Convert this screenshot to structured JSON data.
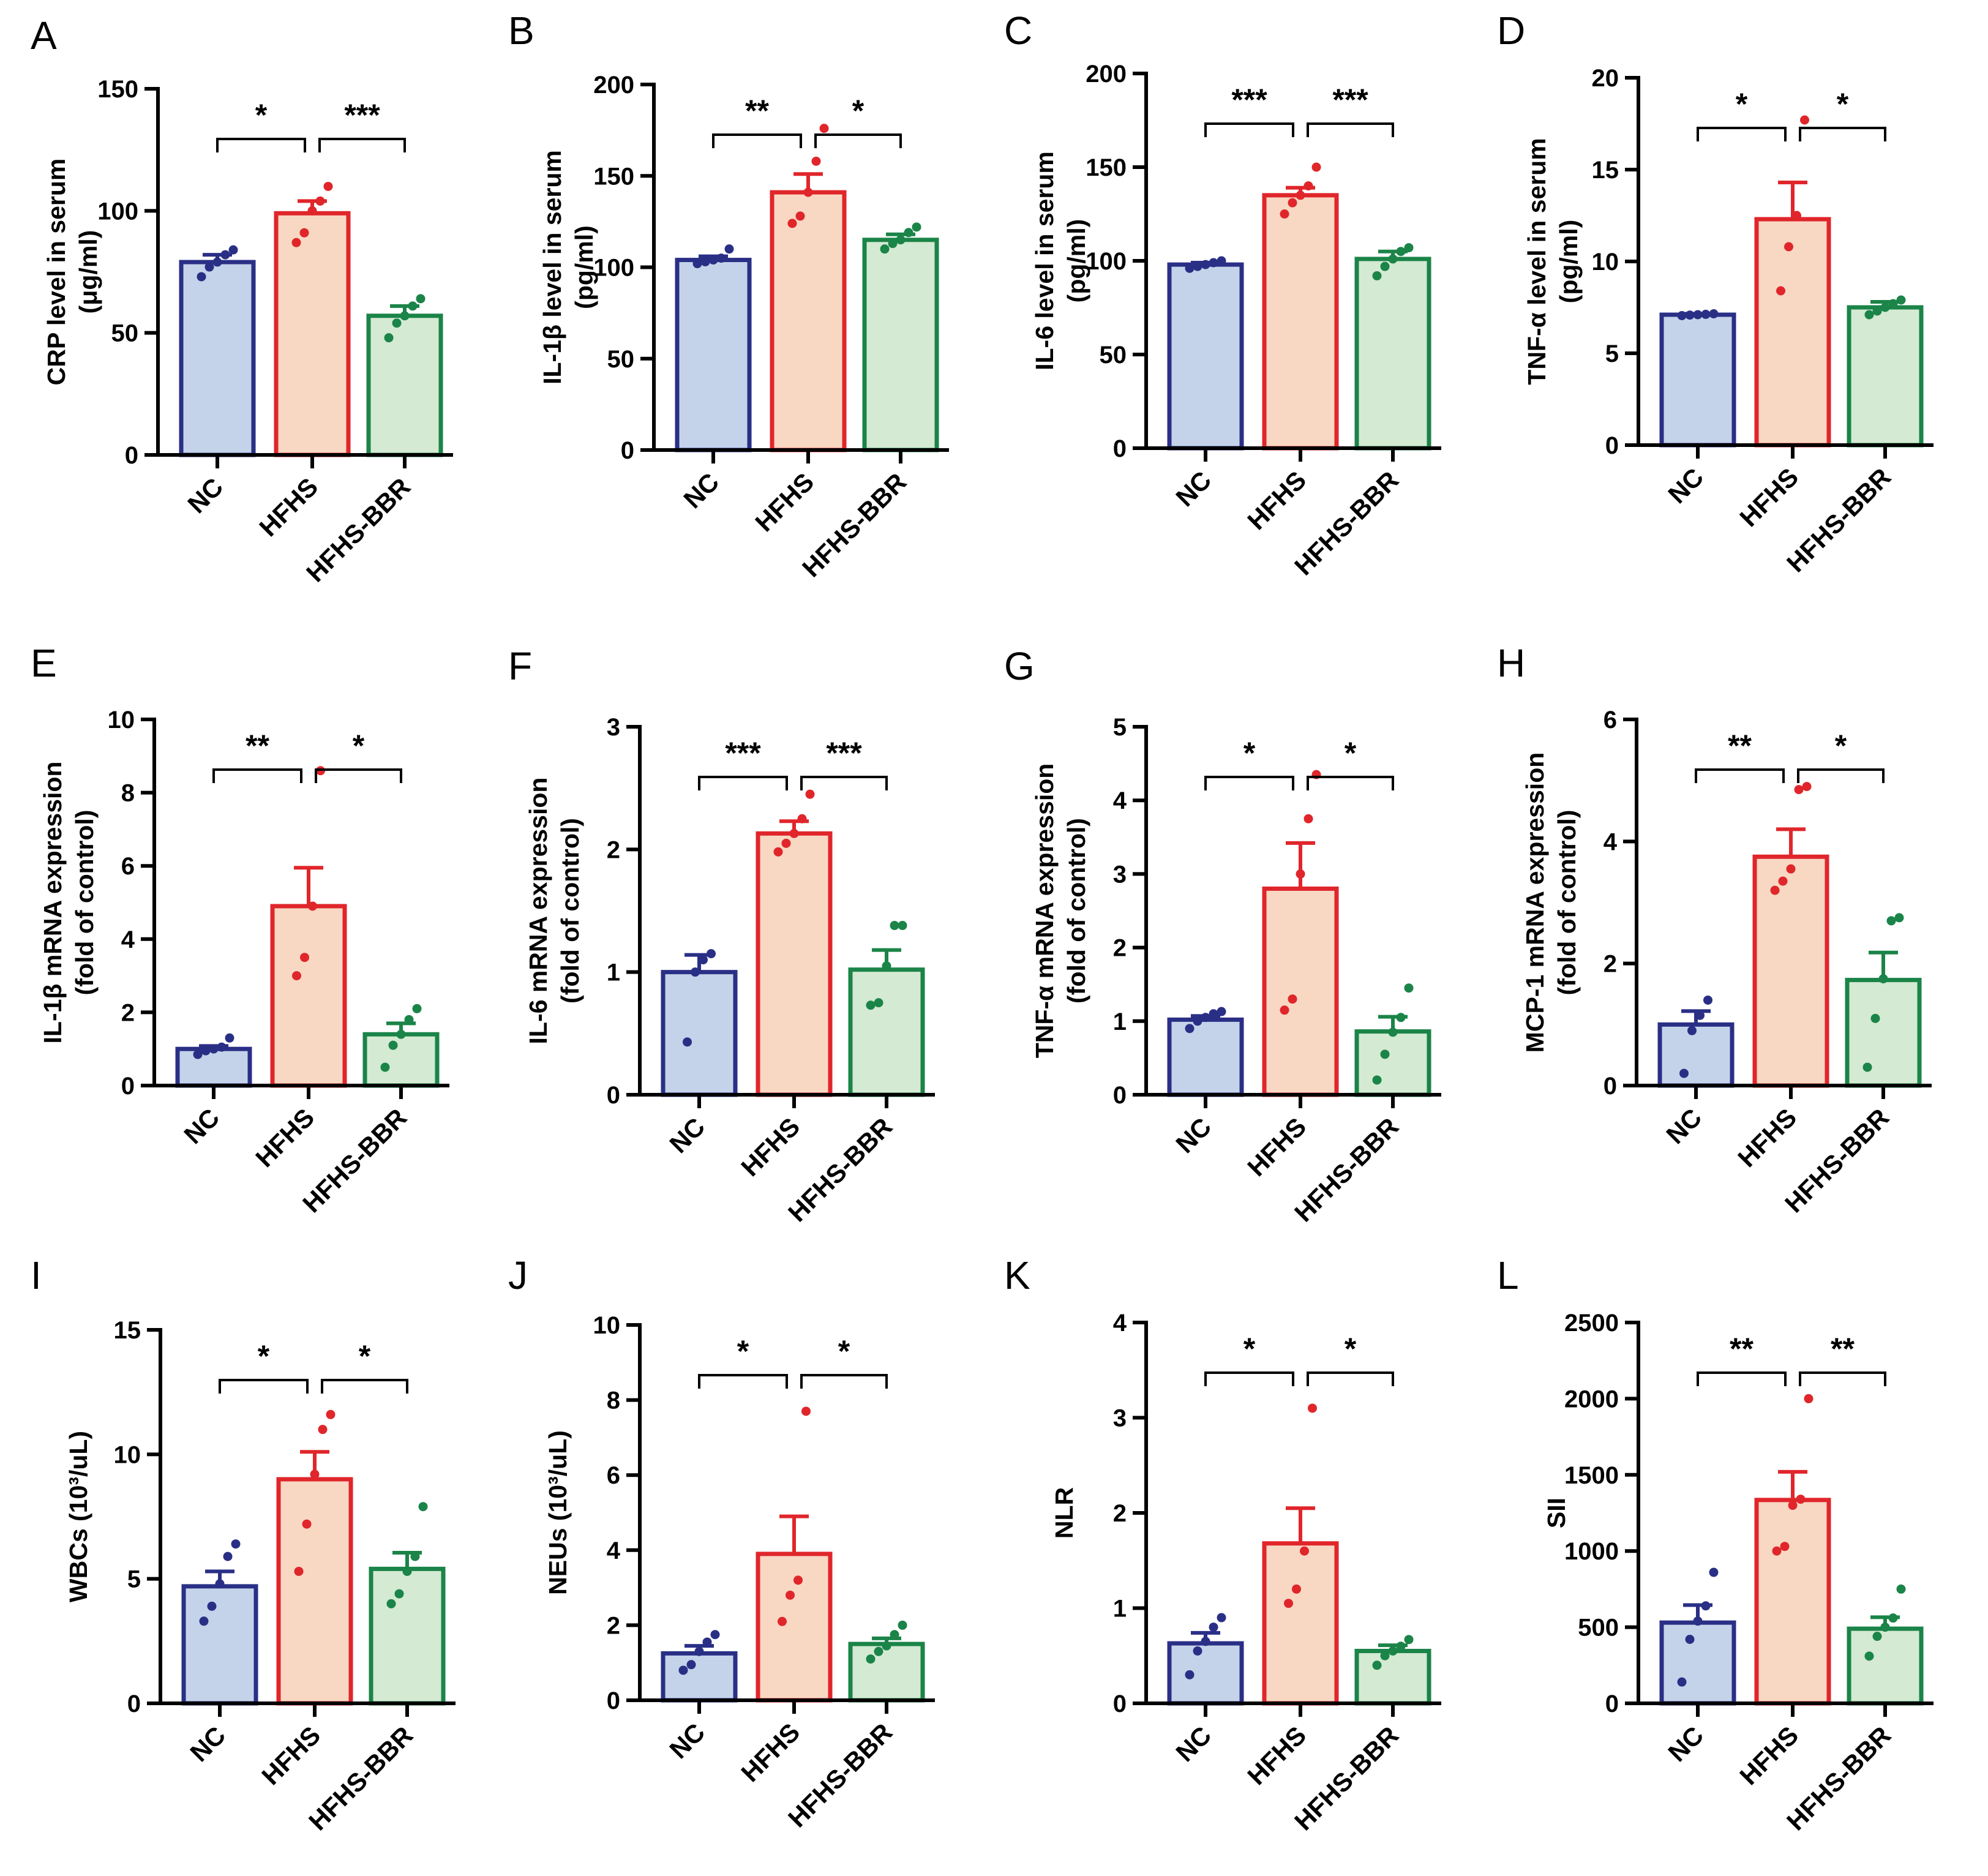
{
  "figure": {
    "groups": [
      "NC",
      "HFHS",
      "HFHS-BBR"
    ],
    "group_colors": {
      "NC": {
        "stroke": "#2a2f86",
        "fill": "#c5d3ea"
      },
      "HFHS": {
        "stroke": "#e0262b",
        "fill": "#f8d8c3"
      },
      "HFHS-BBR": {
        "stroke": "#1b8448",
        "fill": "#d4ead2"
      }
    }
  },
  "chart_data": [
    {
      "panel": "A",
      "type": "bar",
      "ylabel": [
        "CRP level in serum",
        "(μg/ml)"
      ],
      "categories": [
        "NC",
        "HFHS",
        "HFHS-BBR"
      ],
      "ylim": [
        0,
        150
      ],
      "yticks": [
        0,
        50,
        100,
        150
      ],
      "values": [
        79,
        99,
        57
      ],
      "sem": [
        3,
        5,
        4
      ],
      "points": [
        [
          73,
          77,
          79,
          82,
          84
        ],
        [
          87,
          91,
          100,
          104,
          110
        ],
        [
          48,
          54,
          57,
          61,
          64
        ]
      ],
      "significance": [
        {
          "from": 0,
          "to": 1,
          "label": "*"
        },
        {
          "from": 1,
          "to": 2,
          "label": "***"
        }
      ]
    },
    {
      "panel": "B",
      "type": "bar",
      "ylabel": [
        "IL-1β level in serum",
        "(pg/ml)"
      ],
      "categories": [
        "NC",
        "HFHS",
        "HFHS-BBR"
      ],
      "ylim": [
        0,
        200
      ],
      "yticks": [
        0,
        50,
        100,
        150,
        200
      ],
      "values": [
        104,
        141,
        115
      ],
      "sem": [
        2,
        10,
        3
      ],
      "points": [
        [
          102,
          103,
          104,
          105,
          110
        ],
        [
          124,
          128,
          141,
          158,
          176
        ],
        [
          110,
          113,
          115,
          119,
          122
        ]
      ],
      "significance": [
        {
          "from": 0,
          "to": 1,
          "label": "**"
        },
        {
          "from": 1,
          "to": 2,
          "label": "*"
        }
      ]
    },
    {
      "panel": "C",
      "type": "bar",
      "ylabel": [
        "IL-6 level in serum",
        "(pg/ml)"
      ],
      "categories": [
        "NC",
        "HFHS",
        "HFHS-BBR"
      ],
      "ylim": [
        0,
        200
      ],
      "yticks": [
        0,
        50,
        100,
        150,
        200
      ],
      "values": [
        98,
        135,
        101
      ],
      "sem": [
        1,
        4,
        4
      ],
      "points": [
        [
          96,
          97,
          98,
          99,
          100
        ],
        [
          125,
          131,
          135,
          140,
          150
        ],
        [
          92,
          97,
          101,
          105,
          107
        ]
      ],
      "significance": [
        {
          "from": 0,
          "to": 1,
          "label": "***"
        },
        {
          "from": 1,
          "to": 2,
          "label": "***"
        }
      ]
    },
    {
      "panel": "D",
      "type": "bar",
      "ylabel": [
        "TNF-α level in serum",
        "(pg/ml)"
      ],
      "categories": [
        "NC",
        "HFHS",
        "HFHS-BBR"
      ],
      "ylim": [
        0,
        20
      ],
      "yticks": [
        0,
        5,
        10,
        15,
        20
      ],
      "values": [
        7.1,
        12.3,
        7.5
      ],
      "sem": [
        0.05,
        2.0,
        0.3
      ],
      "points": [
        [
          7.05,
          7.08,
          7.1,
          7.12,
          7.15
        ],
        [
          8.4,
          10.8,
          12.5,
          17.7
        ],
        [
          7.1,
          7.3,
          7.5,
          7.7,
          7.9
        ]
      ],
      "significance": [
        {
          "from": 0,
          "to": 1,
          "label": "*"
        },
        {
          "from": 1,
          "to": 2,
          "label": "*"
        }
      ]
    },
    {
      "panel": "E",
      "type": "bar",
      "ylabel": [
        "IL-1β mRNA expression",
        "(fold of control)"
      ],
      "categories": [
        "NC",
        "HFHS",
        "HFHS-BBR"
      ],
      "ylim": [
        0,
        10
      ],
      "yticks": [
        0,
        2,
        4,
        6,
        8,
        10
      ],
      "values": [
        1.0,
        4.9,
        1.4
      ],
      "sem": [
        0.08,
        1.05,
        0.3
      ],
      "points": [
        [
          0.85,
          0.95,
          1.0,
          1.05,
          1.3
        ],
        [
          3.0,
          3.5,
          4.9,
          8.6
        ],
        [
          0.5,
          1.1,
          1.4,
          1.8,
          2.1
        ]
      ],
      "significance": [
        {
          "from": 0,
          "to": 1,
          "label": "**"
        },
        {
          "from": 1,
          "to": 2,
          "label": "*"
        }
      ]
    },
    {
      "panel": "F",
      "type": "bar",
      "ylabel": [
        "IL-6 mRNA expression",
        "(fold of control)"
      ],
      "categories": [
        "NC",
        "HFHS",
        "HFHS-BBR"
      ],
      "ylim": [
        0,
        3
      ],
      "yticks": [
        0,
        1,
        2,
        3
      ],
      "values": [
        1.0,
        2.13,
        1.02
      ],
      "sem": [
        0.14,
        0.1,
        0.16
      ],
      "points": [
        [
          0.43,
          1.0,
          1.1,
          1.15
        ],
        [
          1.98,
          2.05,
          2.13,
          2.25,
          2.45
        ],
        [
          0.73,
          0.75,
          1.05,
          1.38,
          1.38
        ]
      ],
      "significance": [
        {
          "from": 0,
          "to": 1,
          "label": "***"
        },
        {
          "from": 1,
          "to": 2,
          "label": "***"
        }
      ]
    },
    {
      "panel": "G",
      "type": "bar",
      "ylabel": [
        "TNF-α mRNA expression",
        "(fold of control)"
      ],
      "categories": [
        "NC",
        "HFHS",
        "HFHS-BBR"
      ],
      "ylim": [
        0,
        5
      ],
      "yticks": [
        0,
        1,
        2,
        3,
        4,
        5
      ],
      "values": [
        1.02,
        2.8,
        0.86
      ],
      "sem": [
        0.05,
        0.62,
        0.2
      ],
      "points": [
        [
          0.9,
          1.0,
          1.05,
          1.1,
          1.13
        ],
        [
          1.15,
          1.3,
          3.0,
          3.75,
          4.35
        ],
        [
          0.2,
          0.55,
          0.85,
          1.05,
          1.45
        ]
      ],
      "significance": [
        {
          "from": 0,
          "to": 1,
          "label": "*"
        },
        {
          "from": 1,
          "to": 2,
          "label": "*"
        }
      ]
    },
    {
      "panel": "H",
      "type": "bar",
      "ylabel": [
        "MCP-1 mRNA expression",
        "(fold of control)"
      ],
      "categories": [
        "NC",
        "HFHS",
        "HFHS-BBR"
      ],
      "ylim": [
        0,
        6
      ],
      "yticks": [
        0,
        2,
        4,
        6
      ],
      "values": [
        1.0,
        3.75,
        1.73
      ],
      "sem": [
        0.22,
        0.45,
        0.45
      ],
      "points": [
        [
          0.2,
          0.9,
          1.15,
          1.4
        ],
        [
          3.2,
          3.35,
          3.55,
          4.85,
          4.9
        ],
        [
          0.3,
          1.1,
          1.75,
          2.7,
          2.75
        ]
      ],
      "significance": [
        {
          "from": 0,
          "to": 1,
          "label": "**"
        },
        {
          "from": 1,
          "to": 2,
          "label": "*"
        }
      ]
    },
    {
      "panel": "I",
      "type": "bar",
      "ylabel": [
        "WBCs (10³/uL)"
      ],
      "categories": [
        "NC",
        "HFHS",
        "HFHS-BBR"
      ],
      "ylim": [
        0,
        15
      ],
      "yticks": [
        0,
        5,
        10,
        15
      ],
      "values": [
        4.7,
        9.0,
        5.4
      ],
      "sem": [
        0.6,
        1.1,
        0.65
      ],
      "points": [
        [
          3.3,
          3.9,
          4.8,
          5.9,
          6.4
        ],
        [
          5.3,
          7.2,
          9.2,
          11.0,
          11.6
        ],
        [
          4.0,
          4.4,
          5.3,
          5.9,
          7.9
        ]
      ],
      "significance": [
        {
          "from": 0,
          "to": 1,
          "label": "*"
        },
        {
          "from": 1,
          "to": 2,
          "label": "*"
        }
      ]
    },
    {
      "panel": "J",
      "type": "bar",
      "ylabel": [
        "NEUs (10³/uL)"
      ],
      "categories": [
        "NC",
        "HFHS",
        "HFHS-BBR"
      ],
      "ylim": [
        0,
        10
      ],
      "yticks": [
        0,
        2,
        4,
        6,
        8,
        10
      ],
      "values": [
        1.25,
        3.9,
        1.5
      ],
      "sem": [
        0.2,
        1.0,
        0.15
      ],
      "points": [
        [
          0.8,
          0.95,
          1.3,
          1.55,
          1.75
        ],
        [
          2.1,
          2.8,
          3.2,
          7.7
        ],
        [
          1.1,
          1.3,
          1.45,
          1.75,
          2.0
        ]
      ],
      "significance": [
        {
          "from": 0,
          "to": 1,
          "label": "*"
        },
        {
          "from": 1,
          "to": 2,
          "label": "*"
        }
      ]
    },
    {
      "panel": "K",
      "type": "bar",
      "ylabel": [
        "NLR"
      ],
      "categories": [
        "NC",
        "HFHS",
        "HFHS-BBR"
      ],
      "ylim": [
        0,
        4
      ],
      "yticks": [
        0,
        1,
        2,
        3,
        4
      ],
      "values": [
        0.63,
        1.68,
        0.55
      ],
      "sem": [
        0.11,
        0.37,
        0.06
      ],
      "points": [
        [
          0.3,
          0.55,
          0.65,
          0.8,
          0.9
        ],
        [
          1.05,
          1.2,
          1.6,
          3.1
        ],
        [
          0.4,
          0.5,
          0.55,
          0.6,
          0.67
        ]
      ],
      "significance": [
        {
          "from": 0,
          "to": 1,
          "label": "*"
        },
        {
          "from": 1,
          "to": 2,
          "label": "*"
        }
      ]
    },
    {
      "panel": "L",
      "type": "bar",
      "ylabel": [
        "SII"
      ],
      "categories": [
        "NC",
        "HFHS",
        "HFHS-BBR"
      ],
      "ylim": [
        0,
        2500
      ],
      "yticks": [
        0,
        500,
        1000,
        1500,
        2000,
        2500
      ],
      "values": [
        530,
        1335,
        490
      ],
      "sem": [
        115,
        185,
        75
      ],
      "points": [
        [
          140,
          420,
          540,
          640,
          860
        ],
        [
          1000,
          1030,
          1300,
          1340,
          2000
        ],
        [
          310,
          440,
          500,
          560,
          750
        ]
      ],
      "significance": [
        {
          "from": 0,
          "to": 1,
          "label": "**"
        },
        {
          "from": 1,
          "to": 2,
          "label": "**"
        }
      ]
    }
  ]
}
